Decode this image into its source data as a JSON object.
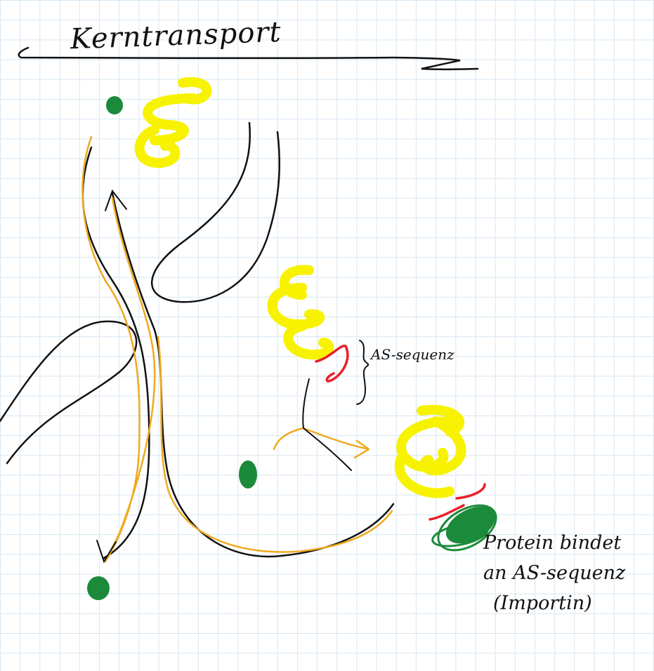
{
  "title": "Kerntransport",
  "labels": {
    "sequence": "AS-sequenz",
    "annotation": {
      "line1": "Protein bindet",
      "line2": "an AS-sequenz",
      "line3": "(Importin)"
    }
  },
  "colors": {
    "ink": "#111111",
    "path": "#f0a91e",
    "protein": "#f7f200",
    "signal": "#e8202a",
    "importin": "#1b8a3a",
    "grid": "#d7e6f2"
  }
}
